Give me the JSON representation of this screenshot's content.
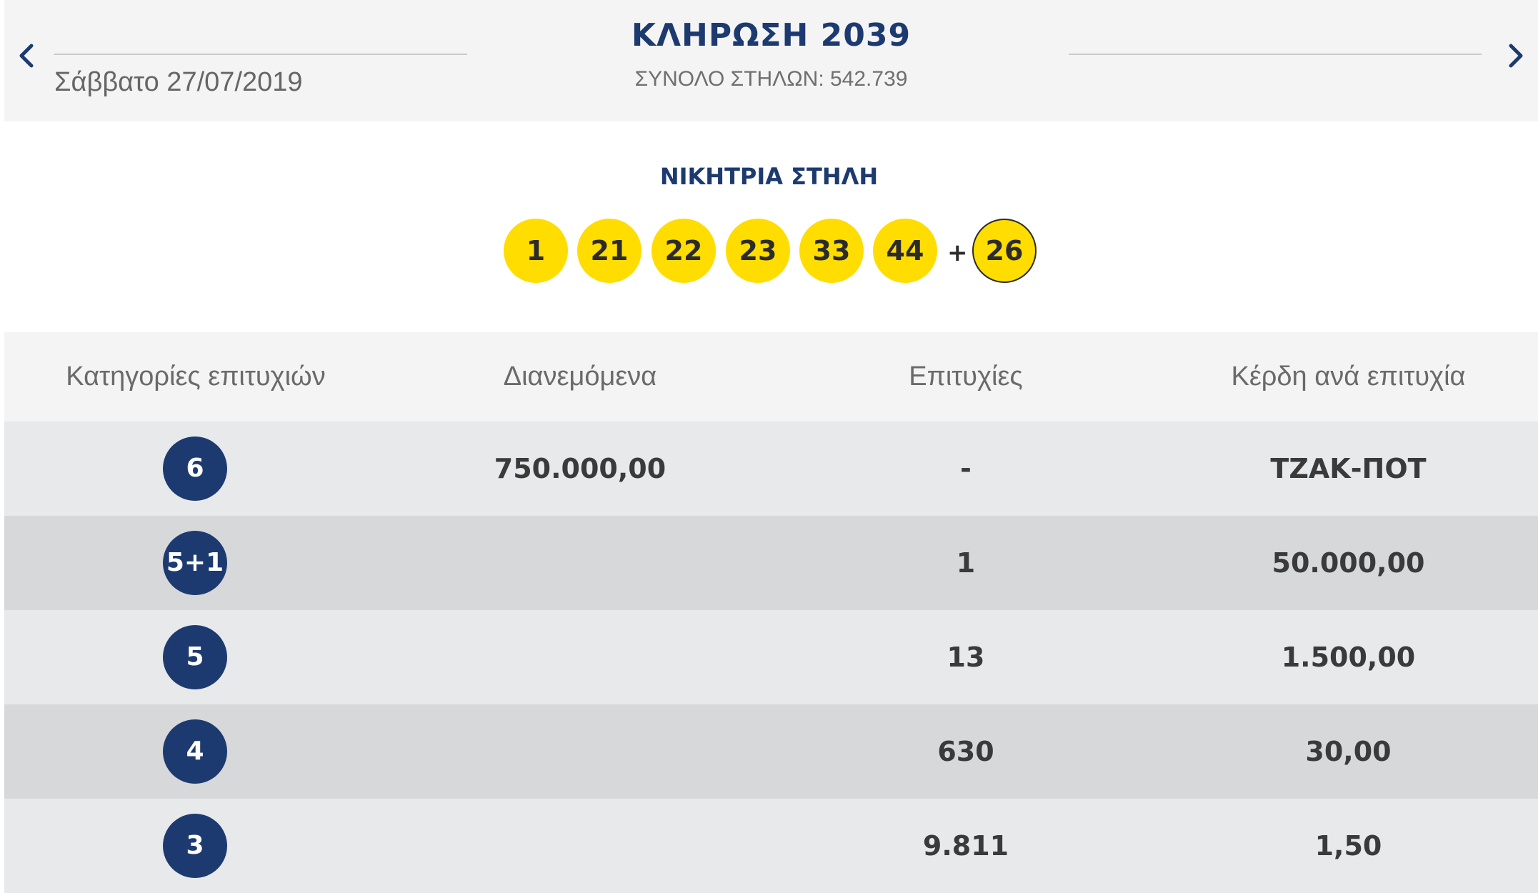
{
  "header": {
    "date": "Σάββατο 27/07/2019",
    "title": "ΚΛΗΡΩΣΗ 2039",
    "total_columns": "ΣΥΝΟΛΟ ΣΤΗΛΩΝ: 542.739",
    "prev_icon": "chevron-left-icon",
    "next_icon": "chevron-right-icon"
  },
  "winning": {
    "title": "ΝΙΚΗΤΡΙΑ ΣΤΗΛΗ",
    "numbers": [
      "1",
      "21",
      "22",
      "23",
      "33",
      "44"
    ],
    "plus": "+",
    "bonus": "26"
  },
  "table": {
    "headers": [
      "Κατηγορίες επιτυχιών",
      "Διανεμόμενα",
      "Επιτυχίες",
      "Κέρδη ανά επιτυχία"
    ],
    "rows": [
      {
        "category": "6",
        "distributed": "750.000,00",
        "winners": "-",
        "prize": "ΤΖΑΚ-ΠΟΤ"
      },
      {
        "category": "5+1",
        "distributed": "",
        "winners": "1",
        "prize": "50.000,00"
      },
      {
        "category": "5",
        "distributed": "",
        "winners": "13",
        "prize": "1.500,00"
      },
      {
        "category": "4",
        "distributed": "",
        "winners": "630",
        "prize": "30,00"
      },
      {
        "category": "3",
        "distributed": "",
        "winners": "9.811",
        "prize": "1,50"
      }
    ]
  },
  "colors": {
    "navy": "#1d3a70",
    "ball_yellow": "#ffdd00",
    "header_bg": "#f4f4f4",
    "row_light": "#e8e9eb",
    "row_dark": "#d7d8da"
  }
}
